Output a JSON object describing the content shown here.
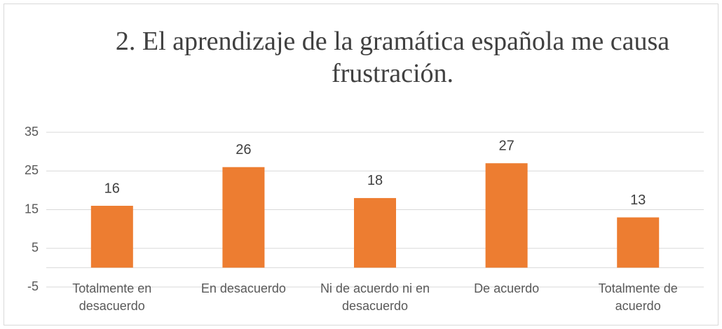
{
  "chart_data": {
    "type": "bar",
    "title": "2. El aprendizaje de la gramática española me causa frustración.",
    "categories": [
      "Totalmente en desacuerdo",
      "En desacuerdo",
      "Ni de acuerdo ni en desacuerdo",
      "De acuerdo",
      "Totalmente de acuerdo"
    ],
    "values": [
      16,
      26,
      18,
      27,
      13
    ],
    "color": "#ed7d31",
    "ylim": [
      -5,
      35
    ],
    "yticks": [
      -5,
      5,
      15,
      25,
      35
    ],
    "grid": true
  }
}
